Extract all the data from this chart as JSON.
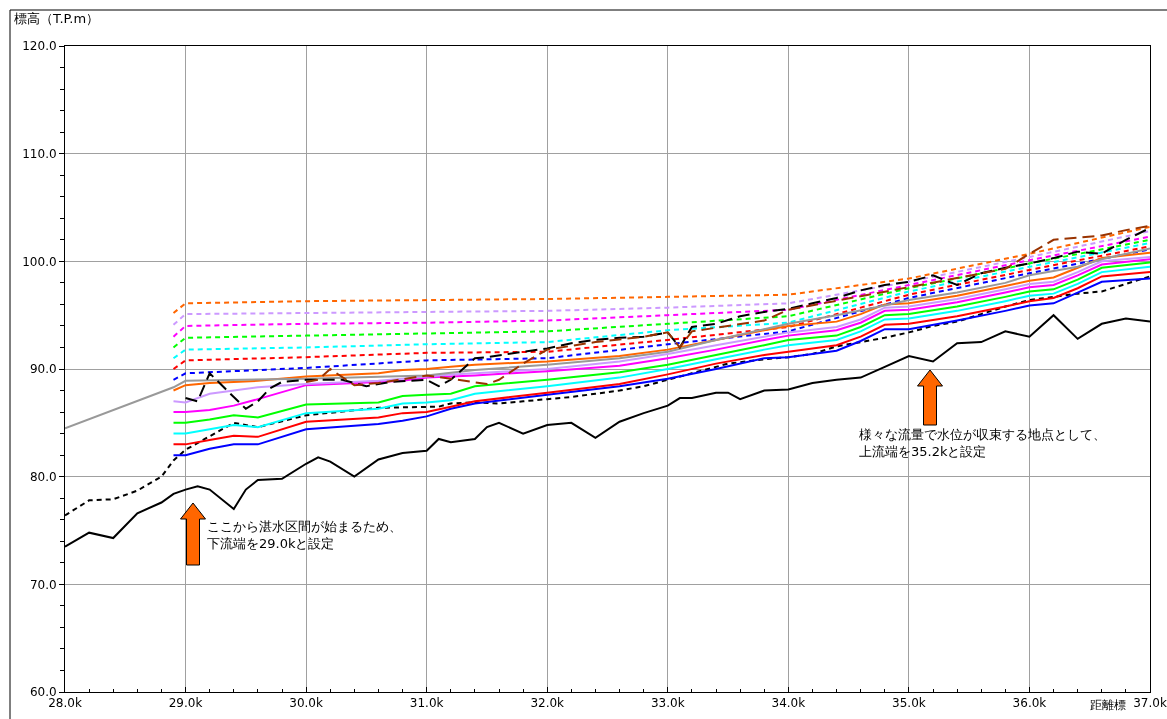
{
  "chart_data": {
    "type": "line",
    "ylabel": "標高（T.P.m）",
    "xlabel": "距離標",
    "xlim": [
      28.0,
      37.0
    ],
    "xticks": [
      {
        "value": 28.0,
        "label": "28.0k"
      },
      {
        "value": 28.2,
        "label": null
      },
      {
        "value": 28.4,
        "label": null
      },
      {
        "value": 28.6,
        "label": null
      },
      {
        "value": 28.8,
        "label": null
      },
      {
        "value": 29.0,
        "label": "29.0k"
      },
      {
        "value": 29.2,
        "label": null
      },
      {
        "value": 29.4,
        "label": null
      },
      {
        "value": 29.6,
        "label": null
      },
      {
        "value": 29.8,
        "label": null
      },
      {
        "value": 30.0,
        "label": "30.0k"
      },
      {
        "value": 30.2,
        "label": null
      },
      {
        "value": 30.4,
        "label": null
      },
      {
        "value": 30.6,
        "label": null
      },
      {
        "value": 30.8,
        "label": null
      },
      {
        "value": 31.0,
        "label": "31.0k"
      },
      {
        "value": 31.2,
        "label": null
      },
      {
        "value": 31.4,
        "label": null
      },
      {
        "value": 31.6,
        "label": null
      },
      {
        "value": 31.8,
        "label": null
      },
      {
        "value": 32.0,
        "label": "32.0k"
      },
      {
        "value": 32.2,
        "label": null
      },
      {
        "value": 32.4,
        "label": null
      },
      {
        "value": 32.6,
        "label": null
      },
      {
        "value": 32.8,
        "label": null
      },
      {
        "value": 33.0,
        "label": "33.0k"
      },
      {
        "value": 33.2,
        "label": null
      },
      {
        "value": 33.4,
        "label": null
      },
      {
        "value": 33.6,
        "label": null
      },
      {
        "value": 33.8,
        "label": null
      },
      {
        "value": 34.0,
        "label": "34.0k"
      },
      {
        "value": 34.2,
        "label": null
      },
      {
        "value": 34.4,
        "label": null
      },
      {
        "value": 34.6,
        "label": null
      },
      {
        "value": 34.8,
        "label": null
      },
      {
        "value": 35.0,
        "label": "35.0k"
      },
      {
        "value": 35.2,
        "label": null
      },
      {
        "value": 35.4,
        "label": null
      },
      {
        "value": 35.6,
        "label": null
      },
      {
        "value": 35.8,
        "label": null
      },
      {
        "value": 36.0,
        "label": "36.0k"
      },
      {
        "value": 36.2,
        "label": null
      },
      {
        "value": 36.4,
        "label": null
      },
      {
        "value": 36.6,
        "label": null
      },
      {
        "value": 36.8,
        "label": null
      },
      {
        "value": 37.0,
        "label": "37.0k"
      }
    ],
    "ylim": [
      60.0,
      120.0
    ],
    "yticks": [
      {
        "value": 60,
        "label": "60.0"
      },
      {
        "value": 62,
        "label": null
      },
      {
        "value": 64,
        "label": null
      },
      {
        "value": 66,
        "label": null
      },
      {
        "value": 68,
        "label": null
      },
      {
        "value": 70,
        "label": "70.0"
      },
      {
        "value": 72,
        "label": null
      },
      {
        "value": 74,
        "label": null
      },
      {
        "value": 76,
        "label": null
      },
      {
        "value": 78,
        "label": null
      },
      {
        "value": 80,
        "label": "80.0"
      },
      {
        "value": 82,
        "label": null
      },
      {
        "value": 84,
        "label": null
      },
      {
        "value": 86,
        "label": null
      },
      {
        "value": 88,
        "label": null
      },
      {
        "value": 90,
        "label": "90.0"
      },
      {
        "value": 92,
        "label": null
      },
      {
        "value": 94,
        "label": null
      },
      {
        "value": 96,
        "label": null
      },
      {
        "value": 98,
        "label": null
      },
      {
        "value": 100,
        "label": "100.0"
      },
      {
        "value": 102,
        "label": null
      },
      {
        "value": 104,
        "label": null
      },
      {
        "value": 106,
        "label": null
      },
      {
        "value": 108,
        "label": null
      },
      {
        "value": 110,
        "label": "110.0"
      },
      {
        "value": 112,
        "label": null
      },
      {
        "value": 114,
        "label": null
      },
      {
        "value": 116,
        "label": null
      },
      {
        "value": 118,
        "label": null
      },
      {
        "value": 120,
        "label": "120.0"
      }
    ],
    "grid": true,
    "series": [
      {
        "color": "#000000",
        "line_style": "solid",
        "x": [
          28.0,
          28.2,
          28.4,
          28.6,
          28.8,
          28.9,
          29.0,
          29.1,
          29.2,
          29.4,
          29.5,
          29.6,
          29.8,
          30.0,
          30.1,
          30.2,
          30.4,
          30.6,
          30.8,
          31.0,
          31.1,
          31.2,
          31.4,
          31.5,
          31.6,
          31.8,
          32.0,
          32.2,
          32.4,
          32.6,
          32.8,
          33.0,
          33.1,
          33.2,
          33.4,
          33.5,
          33.6,
          33.8,
          34.0,
          34.2,
          34.4,
          34.6,
          34.8,
          35.0,
          35.2,
          35.4,
          35.6,
          35.8,
          36.0,
          36.2,
          36.4,
          36.6,
          36.8,
          37.0
        ],
        "values": [
          73.5,
          74.8,
          74.3,
          76.6,
          77.6,
          78.4,
          78.8,
          79.1,
          78.8,
          77.0,
          78.8,
          79.7,
          79.8,
          81.2,
          81.8,
          81.4,
          80.0,
          81.6,
          82.2,
          82.4,
          83.5,
          83.2,
          83.5,
          84.6,
          85.0,
          84.0,
          84.8,
          85.0,
          83.6,
          85.1,
          85.9,
          86.6,
          87.3,
          87.3,
          87.8,
          87.8,
          87.2,
          88.0,
          88.1,
          88.7,
          89.0,
          89.2,
          90.2,
          91.2,
          90.7,
          92.4,
          92.5,
          93.5,
          93.0,
          95.0,
          92.8,
          94.2,
          94.7,
          94.4
        ]
      },
      {
        "color": "#000000",
        "line_style": "dotted",
        "x": [
          28.0,
          28.2,
          28.4,
          28.6,
          28.8,
          28.9,
          29.0,
          29.4,
          29.6,
          30.0,
          30.6,
          31.1,
          31.2,
          31.4,
          31.6,
          31.8,
          32.0,
          32.2,
          32.4,
          32.6,
          32.8,
          33.0,
          33.2,
          33.4,
          33.5,
          33.8,
          34.0,
          34.2,
          34.4,
          34.6,
          34.8,
          35.0,
          35.2,
          35.4,
          35.6,
          35.8,
          36.0,
          36.2,
          36.4,
          36.6,
          36.8,
          37.0
        ],
        "values": [
          76.4,
          77.8,
          77.9,
          78.7,
          80.0,
          81.5,
          82.5,
          85.0,
          84.6,
          85.7,
          86.4,
          86.5,
          86.8,
          86.9,
          86.8,
          87.0,
          87.2,
          87.4,
          87.7,
          88.0,
          88.4,
          89.0,
          89.6,
          90.2,
          90.5,
          90.9,
          91.1,
          91.4,
          92.1,
          92.5,
          92.9,
          93.4,
          94.0,
          94.4,
          95.1,
          95.8,
          96.4,
          96.7,
          97.0,
          97.2,
          97.9,
          98.6
        ]
      },
      {
        "color": "#ff6600",
        "line_style": "dotted",
        "x": [
          28.9,
          29.0,
          30.0,
          31.0,
          32.0,
          33.0,
          34.0,
          35.0,
          36.0,
          37.0
        ],
        "values": [
          95.2,
          96.1,
          96.3,
          96.4,
          96.5,
          96.7,
          96.9,
          98.4,
          100.7,
          103.2
        ]
      },
      {
        "color": "#cc99ff",
        "line_style": "dotted",
        "x": [
          28.9,
          29.0,
          30.0,
          31.0,
          32.0,
          33.0,
          34.0,
          35.0,
          36.0,
          37.0
        ],
        "values": [
          94.1,
          95.1,
          95.2,
          95.3,
          95.4,
          95.7,
          96.1,
          98.1,
          100.4,
          102.8
        ]
      },
      {
        "color": "#ff00ff",
        "line_style": "dotted",
        "x": [
          28.9,
          29.0,
          30.0,
          31.0,
          32.0,
          33.0,
          34.0,
          35.0,
          36.0,
          37.0
        ],
        "values": [
          93.0,
          94.0,
          94.2,
          94.3,
          94.5,
          95.0,
          95.5,
          97.8,
          100.1,
          102.3
        ]
      },
      {
        "color": "#00ff00",
        "line_style": "dotted",
        "x": [
          28.9,
          29.0,
          30.0,
          31.0,
          32.0,
          33.0,
          34.0,
          35.0,
          36.0,
          37.0
        ],
        "values": [
          92.0,
          92.9,
          93.1,
          93.3,
          93.5,
          94.2,
          94.9,
          97.5,
          99.8,
          102.0
        ]
      },
      {
        "color": "#00ffff",
        "line_style": "dotted",
        "x": [
          28.9,
          29.0,
          30.0,
          31.0,
          32.0,
          33.0,
          34.0,
          35.0,
          36.0,
          37.0
        ],
        "values": [
          91.0,
          91.8,
          92.0,
          92.3,
          92.5,
          93.6,
          94.3,
          97.2,
          99.5,
          101.7
        ]
      },
      {
        "color": "#ff0000",
        "line_style": "dotted",
        "x": [
          28.9,
          29.0,
          30.0,
          31.0,
          32.0,
          33.0,
          34.0,
          35.0,
          36.0,
          37.0
        ],
        "values": [
          90.0,
          90.8,
          91.1,
          91.5,
          91.6,
          92.7,
          93.9,
          96.9,
          99.2,
          101.4
        ]
      },
      {
        "color": "#0000ff",
        "line_style": "dotted",
        "x": [
          28.9,
          29.0,
          30.0,
          31.0,
          32.0,
          33.0,
          34.0,
          35.0,
          36.0,
          37.0
        ],
        "values": [
          89.0,
          89.6,
          90.1,
          90.8,
          91.0,
          92.3,
          93.5,
          96.6,
          98.9,
          101.1
        ]
      },
      {
        "color": "#0000ff",
        "line_style": "solid",
        "x": [
          28.9,
          29.0,
          29.2,
          29.4,
          29.6,
          30.0,
          30.6,
          30.8,
          31.0,
          31.2,
          31.4,
          32.0,
          32.6,
          33.0,
          33.4,
          33.8,
          34.0,
          34.4,
          34.6,
          34.8,
          35.0,
          35.4,
          35.8,
          36.0,
          36.2,
          36.4,
          36.6,
          37.0
        ],
        "values": [
          82.0,
          82.0,
          82.6,
          83.0,
          83.0,
          84.4,
          84.9,
          85.2,
          85.6,
          86.3,
          86.8,
          87.6,
          88.4,
          89.1,
          90.0,
          91.0,
          91.1,
          91.7,
          92.6,
          93.7,
          93.7,
          94.5,
          95.4,
          95.9,
          96.1,
          97.1,
          98.1,
          98.4
        ]
      },
      {
        "color": "#ff0000",
        "line_style": "solid",
        "x": [
          28.9,
          29.0,
          29.2,
          29.4,
          29.6,
          30.0,
          30.6,
          30.8,
          31.0,
          31.2,
          31.4,
          32.0,
          32.6,
          33.0,
          33.4,
          33.8,
          34.0,
          34.4,
          34.6,
          34.8,
          35.0,
          35.4,
          35.8,
          36.0,
          36.2,
          36.4,
          36.6,
          37.0
        ],
        "values": [
          83.0,
          83.0,
          83.4,
          83.8,
          83.7,
          85.1,
          85.5,
          85.9,
          86.0,
          86.5,
          87.0,
          87.8,
          88.6,
          89.5,
          90.5,
          91.3,
          91.6,
          92.2,
          93.0,
          94.1,
          94.2,
          94.9,
          95.8,
          96.3,
          96.6,
          97.5,
          98.6,
          99.0
        ]
      },
      {
        "color": "#00ffff",
        "line_style": "solid",
        "x": [
          28.9,
          29.0,
          29.2,
          29.4,
          29.6,
          30.0,
          30.6,
          30.8,
          31.0,
          31.2,
          31.4,
          32.0,
          32.6,
          33.0,
          33.4,
          33.8,
          34.0,
          34.4,
          34.6,
          34.8,
          35.0,
          35.4,
          35.8,
          36.0,
          36.2,
          36.4,
          36.6,
          37.0
        ],
        "values": [
          84.0,
          84.0,
          84.4,
          84.8,
          84.6,
          85.9,
          86.3,
          86.8,
          86.9,
          87.1,
          87.7,
          88.4,
          89.2,
          90.0,
          90.9,
          91.8,
          92.2,
          92.7,
          93.5,
          94.6,
          94.7,
          95.4,
          96.3,
          96.8,
          97.0,
          97.9,
          99.0,
          99.5
        ]
      },
      {
        "color": "#00ff00",
        "line_style": "solid",
        "x": [
          28.9,
          29.0,
          29.2,
          29.4,
          29.6,
          30.0,
          30.6,
          30.8,
          31.0,
          31.2,
          31.4,
          32.0,
          32.6,
          33.0,
          33.4,
          33.8,
          34.0,
          34.4,
          34.6,
          34.8,
          35.0,
          35.4,
          35.8,
          36.0,
          36.2,
          36.4,
          36.6,
          37.0
        ],
        "values": [
          85.0,
          85.0,
          85.3,
          85.7,
          85.5,
          86.7,
          86.9,
          87.5,
          87.6,
          87.7,
          88.4,
          89.0,
          89.7,
          90.4,
          91.3,
          92.2,
          92.7,
          93.1,
          93.9,
          95.0,
          95.1,
          95.8,
          96.7,
          97.2,
          97.4,
          98.3,
          99.4,
          99.9
        ]
      },
      {
        "color": "#ff00ff",
        "line_style": "solid",
        "x": [
          28.9,
          29.0,
          29.2,
          29.4,
          29.6,
          30.0,
          30.6,
          30.8,
          31.0,
          31.2,
          31.4,
          32.0,
          32.6,
          33.0,
          33.4,
          33.8,
          34.0,
          34.4,
          34.6,
          34.8,
          35.0,
          35.4,
          35.8,
          36.0,
          36.2,
          36.4,
          36.6,
          37.0
        ],
        "values": [
          86.0,
          86.0,
          86.2,
          86.6,
          87.2,
          88.5,
          88.8,
          88.9,
          89.2,
          89.3,
          89.4,
          89.8,
          90.3,
          91.0,
          91.8,
          92.7,
          93.1,
          93.6,
          94.3,
          95.4,
          95.5,
          96.2,
          97.1,
          97.6,
          97.8,
          98.7,
          99.7,
          100.2
        ]
      },
      {
        "color": "#cc99ff",
        "line_style": "solid",
        "x": [
          28.9,
          29.0,
          29.2,
          29.4,
          29.6,
          30.0,
          30.6,
          30.8,
          31.0,
          31.2,
          31.4,
          32.0,
          32.6,
          33.0,
          33.4,
          33.8,
          34.0,
          34.4,
          34.6,
          34.8,
          35.0,
          35.4,
          35.8,
          36.0,
          36.2,
          36.4,
          36.6,
          37.0
        ],
        "values": [
          87.0,
          86.9,
          87.7,
          88.0,
          88.3,
          88.6,
          88.9,
          89.1,
          89.3,
          89.5,
          89.6,
          90.0,
          90.7,
          91.4,
          92.2,
          93.0,
          93.4,
          93.9,
          94.6,
          95.7,
          95.8,
          96.5,
          97.4,
          97.9,
          98.1,
          99.0,
          100.0,
          100.4
        ]
      },
      {
        "color": "#ff6600",
        "line_style": "solid",
        "x": [
          28.9,
          29.0,
          29.2,
          29.4,
          29.6,
          30.0,
          30.6,
          30.8,
          31.0,
          31.2,
          31.4,
          32.0,
          32.6,
          33.0,
          33.4,
          33.8,
          34.0,
          34.4,
          34.6,
          34.8,
          35.0,
          35.4,
          35.8,
          36.0,
          36.2,
          36.4,
          36.6,
          37.0
        ],
        "values": [
          88.0,
          88.5,
          88.7,
          88.8,
          88.9,
          89.3,
          89.6,
          89.9,
          90.0,
          90.2,
          90.4,
          90.7,
          91.2,
          91.8,
          92.7,
          93.6,
          94.0,
          94.4,
          95.1,
          96.0,
          96.1,
          96.8,
          97.7,
          98.2,
          98.5,
          99.4,
          100.3,
          100.8
        ]
      },
      {
        "color": "#999999",
        "line_style": "solid",
        "x": [
          28.0,
          28.9,
          29.0,
          30.0,
          31.0,
          31.4,
          32.0,
          32.6,
          33.0,
          33.4,
          33.8,
          34.0,
          34.4,
          34.8,
          35.0,
          35.4,
          35.8,
          36.0,
          36.4,
          36.6,
          37.0
        ],
        "values": [
          84.5,
          88.3,
          88.9,
          89.1,
          89.4,
          89.9,
          90.4,
          91.0,
          91.6,
          92.7,
          93.7,
          94.2,
          95.0,
          95.9,
          96.4,
          97.1,
          98.0,
          98.7,
          99.5,
          100.2,
          101.2
        ]
      },
      {
        "color": "#000000",
        "line_style": "dashed",
        "x": [
          29.0,
          29.1,
          29.2,
          29.5,
          29.6,
          29.7,
          29.8,
          30.0,
          30.3,
          30.5,
          30.7,
          31.0,
          31.1,
          31.2,
          31.4,
          31.5,
          31.8,
          32.0,
          32.2,
          32.4,
          32.6,
          32.8,
          33.0,
          33.1,
          33.2,
          33.4,
          33.6,
          33.8,
          34.0,
          34.2,
          34.4,
          34.6,
          34.8,
          35.0,
          35.2,
          35.4,
          35.6,
          35.8,
          36.0,
          36.2,
          36.4,
          36.6,
          36.8,
          37.0
        ],
        "values": [
          87.3,
          87.0,
          89.6,
          86.3,
          87.0,
          88.2,
          88.8,
          89.0,
          89.0,
          88.4,
          88.8,
          89.0,
          88.4,
          89.0,
          91.0,
          91.1,
          91.6,
          91.9,
          92.4,
          92.7,
          92.9,
          93.0,
          93.4,
          92.0,
          93.9,
          94.2,
          94.9,
          95.3,
          95.6,
          96.1,
          96.6,
          97.3,
          97.8,
          98.1,
          98.7,
          97.8,
          98.9,
          99.4,
          99.8,
          100.3,
          100.9,
          100.7,
          102.0,
          103.1
        ]
      },
      {
        "color": "#993300",
        "line_style": "dashed",
        "x": [
          30.0,
          30.1,
          30.2,
          30.4,
          30.6,
          31.0,
          31.2,
          31.5,
          31.6,
          31.8,
          32.0,
          32.4,
          32.8,
          33.0,
          33.1,
          33.2,
          33.8,
          34.0,
          35.0,
          35.8,
          36.0,
          36.2,
          36.6,
          36.8,
          37.0
        ],
        "values": [
          88.8,
          89.0,
          90.0,
          88.5,
          88.7,
          89.4,
          89.1,
          88.6,
          89.0,
          90.5,
          91.8,
          92.5,
          93.0,
          93.4,
          92.0,
          93.5,
          94.5,
          95.5,
          97.6,
          99.3,
          100.7,
          102.0,
          102.4,
          102.9,
          103.3
        ]
      }
    ],
    "annotations": [
      "ここから湛水区間が始まるため、下流端を29.0kと設定",
      "様々な流量で水位が収束する地点として、上流端を35.2kと設定"
    ]
  }
}
